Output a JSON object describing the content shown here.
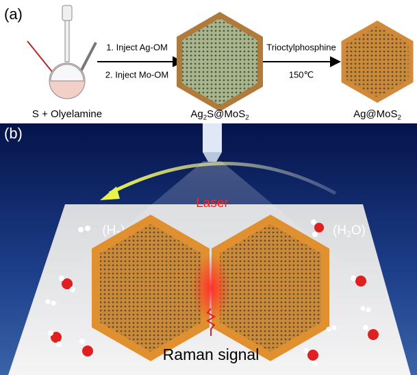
{
  "panel_a": {
    "label": "(a)",
    "step1": "1. Inject Ag-OM",
    "step2": "2. Inject Mo-OM",
    "reagent": "Trioctylphosphine",
    "temperature": "150℃",
    "start": "S + Olyelamine",
    "intermediate": [
      "Ag",
      "2",
      "S@MoS",
      "2"
    ],
    "product": [
      "Ag@MoS",
      "2"
    ]
  },
  "panel_b": {
    "label": "(b)",
    "laser": "Laser",
    "h2": [
      "(H",
      "2",
      ")"
    ],
    "h2o": [
      "(H",
      "2",
      "O)"
    ],
    "signal": "Raman signal"
  }
}
